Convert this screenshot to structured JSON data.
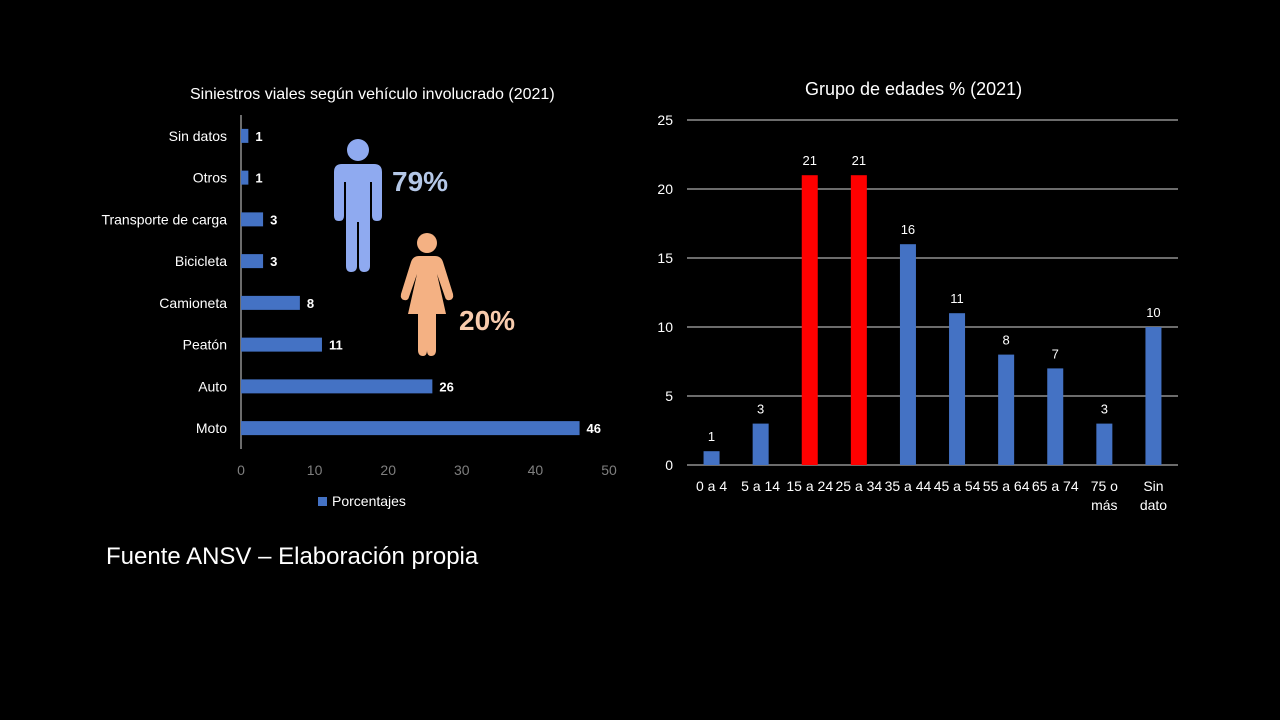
{
  "colors": {
    "bar": "#4472C4",
    "highlight": "#FF0000",
    "male": "#8FAAF0",
    "female": "#F4B183",
    "male_text": "#B4C7E7",
    "female_text": "#F8CBAD",
    "axis_text": "#7F7F7F",
    "grid": "#D9D9D9"
  },
  "icons": {
    "male": "male-person-icon",
    "female": "female-person-icon"
  },
  "gender": {
    "male_pct": "79%",
    "female_pct": "20%"
  },
  "source_note": "Fuente ANSV – Elaboración propia",
  "chart_data": [
    {
      "type": "bar",
      "orientation": "horizontal",
      "title": "Siniestros viales según vehículo involucrado (2021)",
      "categories": [
        "Sin datos",
        "Otros",
        "Transporte de carga",
        "Bicicleta",
        "Camioneta",
        "Peatón",
        "Auto",
        "Moto"
      ],
      "series": [
        {
          "name": "Porcentajes",
          "values": [
            1,
            1,
            3,
            3,
            8,
            11,
            26,
            46
          ]
        }
      ],
      "xlim": [
        0,
        50
      ],
      "xticks": [
        "0",
        "10",
        "20",
        "30",
        "40",
        "50"
      ],
      "legend": "bottom",
      "grid": false
    },
    {
      "type": "bar",
      "orientation": "vertical",
      "title": "Grupo de edades % (2021)",
      "categories": [
        "0 a 4",
        "5 a 14",
        "15 a 24",
        "25 a 34",
        "35 a 44",
        "45 a 54",
        "55 a 64",
        "65 a 74",
        "75 o más",
        "Sin dato"
      ],
      "category_lines": [
        [
          "0 a 4"
        ],
        [
          "5 a 14"
        ],
        [
          "15 a 24"
        ],
        [
          "25 a 34"
        ],
        [
          "35 a 44"
        ],
        [
          "45 a 54"
        ],
        [
          "55 a 64"
        ],
        [
          "65 a 74"
        ],
        [
          "75 o",
          "más"
        ],
        [
          "Sin",
          "dato"
        ]
      ],
      "values": [
        1,
        3,
        21,
        21,
        16,
        11,
        8,
        7,
        3,
        10
      ],
      "highlighted": [
        "15 a 24",
        "25 a 34"
      ],
      "ylim": [
        0,
        25
      ],
      "yticks": [
        "0",
        "5",
        "10",
        "15",
        "20",
        "25"
      ],
      "grid": true
    }
  ]
}
